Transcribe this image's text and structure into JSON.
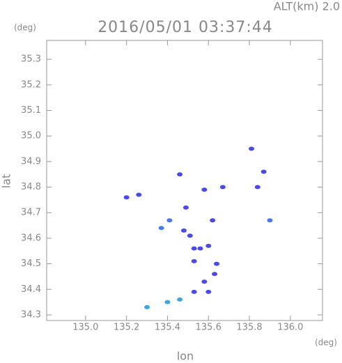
{
  "chart_data": {
    "type": "scatter",
    "title": "2016/05/01 03:37:44",
    "subtitle": "ALT(km) 2.0",
    "y_unit": "(deg)",
    "x_unit": "(deg)",
    "x_label": "lon",
    "y_label": "lat",
    "x": [
      135.2,
      135.26,
      135.37,
      135.41,
      135.48,
      135.51,
      135.53,
      135.56,
      135.53,
      135.6,
      135.64,
      135.62,
      135.49,
      135.58,
      135.63,
      135.53,
      135.6,
      135.46,
      135.4,
      135.3,
      135.81,
      135.84,
      135.87,
      135.9,
      135.58,
      135.67,
      135.46
    ],
    "y": [
      34.76,
      34.77,
      34.64,
      34.67,
      34.63,
      34.61,
      34.56,
      34.56,
      34.51,
      34.57,
      34.5,
      34.67,
      34.72,
      34.43,
      34.46,
      34.39,
      34.39,
      34.36,
      34.35,
      34.33,
      34.95,
      34.8,
      34.86,
      34.67,
      34.79,
      34.8,
      34.85
    ],
    "colors": [
      "#4a4ae8",
      "#4a4ae8",
      "#4a7ae8",
      "#4a7ae8",
      "#4a4ae8",
      "#4a4ae8",
      "#4a4ae8",
      "#4a4ae8",
      "#4a4ae8",
      "#4a4ae8",
      "#4a4ae8",
      "#4a4ae8",
      "#4a4ae8",
      "#4a4ae8",
      "#4a4ae8",
      "#4a4ae8",
      "#4a4ae8",
      "#3aa8e8",
      "#3aa8e8",
      "#3aa8e8",
      "#4a4ae8",
      "#4a4ae8",
      "#4a4ae8",
      "#4a7ae8",
      "#4a4ae8",
      "#4a4ae8",
      "#4a4ae8"
    ],
    "xlim": [
      134.81,
      136.157
    ],
    "ylim": [
      34.278,
      35.374
    ],
    "xticks": [
      {
        "value": 135,
        "label": "135.0"
      },
      135.2,
      135.4,
      135.6,
      135.8,
      {
        "value": 136,
        "label": "136.0"
      }
    ],
    "yticks": [
      34.3,
      34.4,
      34.5,
      34.6,
      34.7,
      34.8,
      34.9,
      {
        "value": 35,
        "label": "35.0"
      },
      35.1,
      35.2,
      35.3
    ]
  }
}
